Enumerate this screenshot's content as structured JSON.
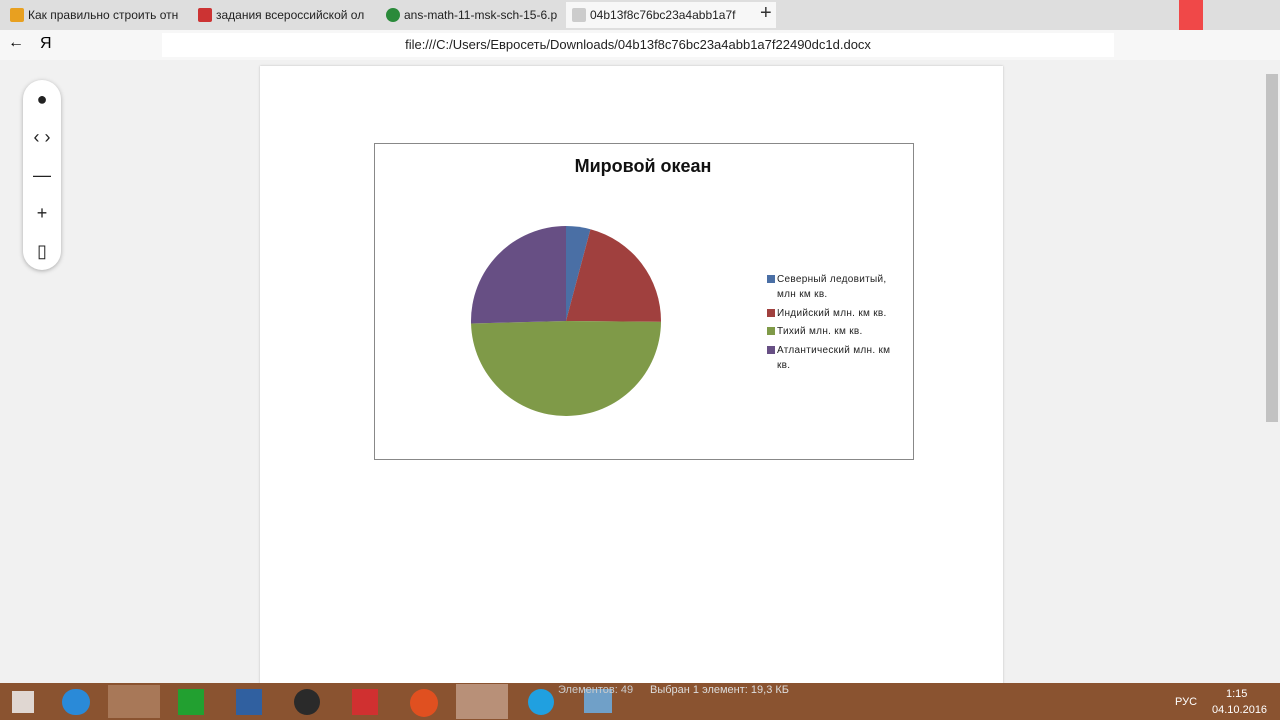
{
  "browser": {
    "tabs": [
      "Как правильно строить отн",
      "задания всероссийской ол",
      "ans-math-11-msk-sch-15-6.p",
      "04b13f8c76bc23a4abb1a7f"
    ],
    "address": "file:///C:/Users/Евросеть/Downloads/04b13f8c76bc23a4abb1a7f22490dc1d.docx"
  },
  "chart_data": {
    "type": "pie",
    "title": "Мировой океан",
    "categories": [
      "Северный ледовитый, млн км кв.",
      "Индийский млн. км кв.",
      "Тихий млн. км кв.",
      "Атлантический млн. км кв."
    ],
    "values": [
      15,
      76,
      179,
      92
    ],
    "colors": [
      "#4a6fa5",
      "#a0403e",
      "#7f9a48",
      "#674f84"
    ],
    "legend": "right"
  },
  "taskbar": {
    "status": "Элементов: 49",
    "selection": "Выбран 1 элемент: 19,3 КБ",
    "language": "РУС",
    "time": "1:15",
    "date": "04.10.2016"
  }
}
